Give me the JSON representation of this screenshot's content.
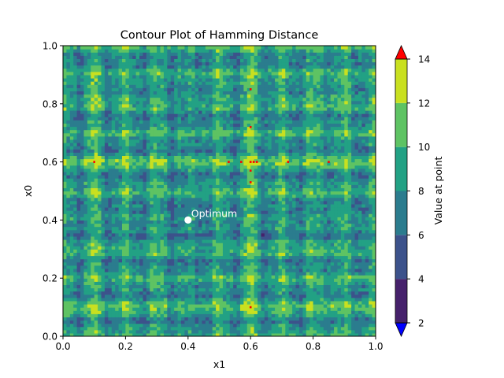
{
  "chart_data": {
    "type": "heatmap",
    "title": "Contour Plot of Hamming Distance",
    "xlabel": "x1",
    "ylabel": "x0",
    "xlim": [
      0.0,
      1.0
    ],
    "ylim": [
      0.0,
      1.0
    ],
    "x_ticks": [
      "0.0",
      "0.2",
      "0.4",
      "0.6",
      "0.8",
      "1.0"
    ],
    "y_ticks": [
      "0.0",
      "0.2",
      "0.4",
      "0.6",
      "0.8",
      "1.0"
    ],
    "colorbar": {
      "label": "Value at point",
      "levels": [
        2,
        4,
        6,
        8,
        10,
        12,
        14
      ],
      "tick_labels": [
        "2",
        "4",
        "6",
        "8",
        "10",
        "12",
        "14"
      ],
      "band_colors": [
        "#46216b",
        "#3c528b",
        "#2b7c8e",
        "#22a184",
        "#5ec363",
        "#c9e020"
      ],
      "under_color": "#0000ff",
      "over_color": "#ff0000",
      "extend": "both"
    },
    "optimum": {
      "x": 0.4,
      "y": 0.4,
      "label": "Optimum"
    },
    "highlights_above_max": [
      {
        "x": 0.1,
        "y": 0.6
      },
      {
        "x": 0.53,
        "y": 0.6
      },
      {
        "x": 0.57,
        "y": 0.6
      },
      {
        "x": 0.6,
        "y": 0.6
      },
      {
        "x": 0.61,
        "y": 0.6
      },
      {
        "x": 0.62,
        "y": 0.6
      },
      {
        "x": 0.72,
        "y": 0.6
      },
      {
        "x": 0.85,
        "y": 0.6
      },
      {
        "x": 0.6,
        "y": 0.85
      },
      {
        "x": 0.6,
        "y": 0.72
      },
      {
        "x": 0.6,
        "y": 0.57
      },
      {
        "x": 0.6,
        "y": 0.53
      },
      {
        "x": 0.6,
        "y": 0.1
      }
    ],
    "grid": false
  }
}
